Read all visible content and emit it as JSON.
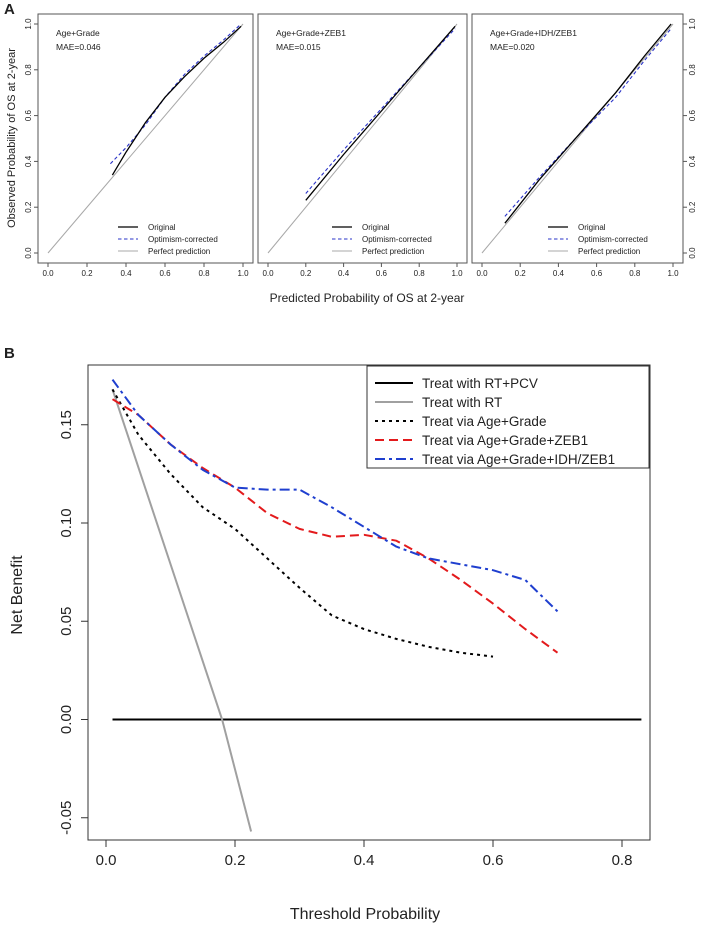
{
  "figure": {
    "panel_a_letter": "A",
    "panel_b_letter": "B"
  },
  "panel_a": {
    "ylabel": "Observed Probability of OS at 2-year",
    "xlabel": "Predicted Probability of OS at 2-year",
    "ticks": [
      "0.0",
      "0.2",
      "0.4",
      "0.6",
      "0.8",
      "1.0"
    ],
    "tick_values": [
      0,
      0.2,
      0.4,
      0.6,
      0.8,
      1.0
    ],
    "legend": [
      "Original",
      "Optimism-corrected",
      "Perfect prediction"
    ]
  },
  "chart_data": [
    {
      "type": "line",
      "title": "Age+Grade",
      "annotation": "MAE=0.046",
      "xlim": [
        0,
        1
      ],
      "ylim": [
        0,
        1
      ],
      "series": [
        {
          "name": "Original",
          "x": [
            0.33,
            0.4,
            0.5,
            0.6,
            0.7,
            0.8,
            0.9,
            0.99
          ],
          "y": [
            0.34,
            0.44,
            0.57,
            0.68,
            0.77,
            0.85,
            0.92,
            0.99
          ]
        },
        {
          "name": "Optimism-corrected",
          "x": [
            0.32,
            0.4,
            0.5,
            0.6,
            0.7,
            0.8,
            0.9,
            0.99
          ],
          "y": [
            0.39,
            0.46,
            0.56,
            0.68,
            0.78,
            0.86,
            0.93,
            1.0
          ]
        },
        {
          "name": "Perfect prediction",
          "x": [
            0,
            1
          ],
          "y": [
            0,
            1
          ]
        }
      ]
    },
    {
      "type": "line",
      "title": "Age+Grade+ZEB1",
      "annotation": "MAE=0.015",
      "xlim": [
        0,
        1
      ],
      "ylim": [
        0,
        1
      ],
      "series": [
        {
          "name": "Original",
          "x": [
            0.2,
            0.4,
            0.6,
            0.8,
            0.99
          ],
          "y": [
            0.23,
            0.43,
            0.62,
            0.81,
            0.99
          ]
        },
        {
          "name": "Optimism-corrected",
          "x": [
            0.2,
            0.4,
            0.6,
            0.8,
            0.99
          ],
          "y": [
            0.26,
            0.45,
            0.63,
            0.81,
            0.98
          ]
        },
        {
          "name": "Perfect prediction",
          "x": [
            0,
            1
          ],
          "y": [
            0,
            1
          ]
        }
      ]
    },
    {
      "type": "line",
      "title": "Age+Grade+IDH/ZEB1",
      "annotation": "MAE=0.020",
      "xlim": [
        0,
        1
      ],
      "ylim": [
        0,
        1
      ],
      "series": [
        {
          "name": "Original",
          "x": [
            0.12,
            0.3,
            0.5,
            0.7,
            0.85,
            0.99
          ],
          "y": [
            0.13,
            0.32,
            0.51,
            0.7,
            0.86,
            1.0
          ]
        },
        {
          "name": "Optimism-corrected",
          "x": [
            0.12,
            0.3,
            0.5,
            0.7,
            0.85,
            0.99
          ],
          "y": [
            0.16,
            0.33,
            0.51,
            0.68,
            0.84,
            0.98
          ]
        },
        {
          "name": "Perfect prediction",
          "x": [
            0,
            1
          ],
          "y": [
            0,
            1
          ]
        }
      ]
    },
    {
      "type": "line",
      "title": "",
      "xlabel": "Threshold Probability",
      "ylabel": "Net Benefit",
      "xlim": [
        -0.02,
        0.83
      ],
      "ylim": [
        -0.057,
        0.175
      ],
      "x_ticks": [
        "0.0",
        "0.2",
        "0.4",
        "0.6",
        "0.8"
      ],
      "x_tick_values": [
        0,
        0.2,
        0.4,
        0.6,
        0.8
      ],
      "y_ticks": [
        "-0.05",
        "0.00",
        "0.05",
        "0.10",
        "0.15"
      ],
      "y_tick_values": [
        -0.05,
        0,
        0.05,
        0.1,
        0.15
      ],
      "legend_position": "top-right",
      "series": [
        {
          "name": "Treat with RT+PCV",
          "color": "#000000",
          "x": [
            0.01,
            0.83
          ],
          "y": [
            0.0,
            0.0
          ]
        },
        {
          "name": "Treat with RT",
          "color": "#a0a0a0",
          "x": [
            0.01,
            0.18,
            0.225
          ],
          "y": [
            0.168,
            0.0,
            -0.057
          ]
        },
        {
          "name": "Treat via Age+Grade",
          "color": "#000000",
          "x": [
            0.01,
            0.05,
            0.1,
            0.15,
            0.2,
            0.25,
            0.3,
            0.35,
            0.4,
            0.45,
            0.5,
            0.55,
            0.6
          ],
          "y": [
            0.168,
            0.145,
            0.125,
            0.108,
            0.097,
            0.082,
            0.067,
            0.053,
            0.046,
            0.041,
            0.037,
            0.034,
            0.032
          ]
        },
        {
          "name": "Treat via Age+Grade+ZEB1",
          "color": "#e31a1c",
          "x": [
            0.01,
            0.05,
            0.1,
            0.15,
            0.2,
            0.25,
            0.3,
            0.35,
            0.4,
            0.45,
            0.5,
            0.55,
            0.6,
            0.65,
            0.7
          ],
          "y": [
            0.163,
            0.155,
            0.14,
            0.128,
            0.118,
            0.105,
            0.097,
            0.093,
            0.094,
            0.091,
            0.082,
            0.071,
            0.059,
            0.046,
            0.034
          ]
        },
        {
          "name": "Treat via Age+Grade+IDH/ZEB1",
          "color": "#1f3fcf",
          "x": [
            0.01,
            0.05,
            0.1,
            0.15,
            0.2,
            0.25,
            0.3,
            0.35,
            0.4,
            0.45,
            0.5,
            0.55,
            0.6,
            0.65,
            0.7
          ],
          "y": [
            0.173,
            0.155,
            0.14,
            0.127,
            0.118,
            0.117,
            0.117,
            0.108,
            0.098,
            0.088,
            0.082,
            0.079,
            0.076,
            0.071,
            0.055
          ]
        }
      ]
    }
  ]
}
